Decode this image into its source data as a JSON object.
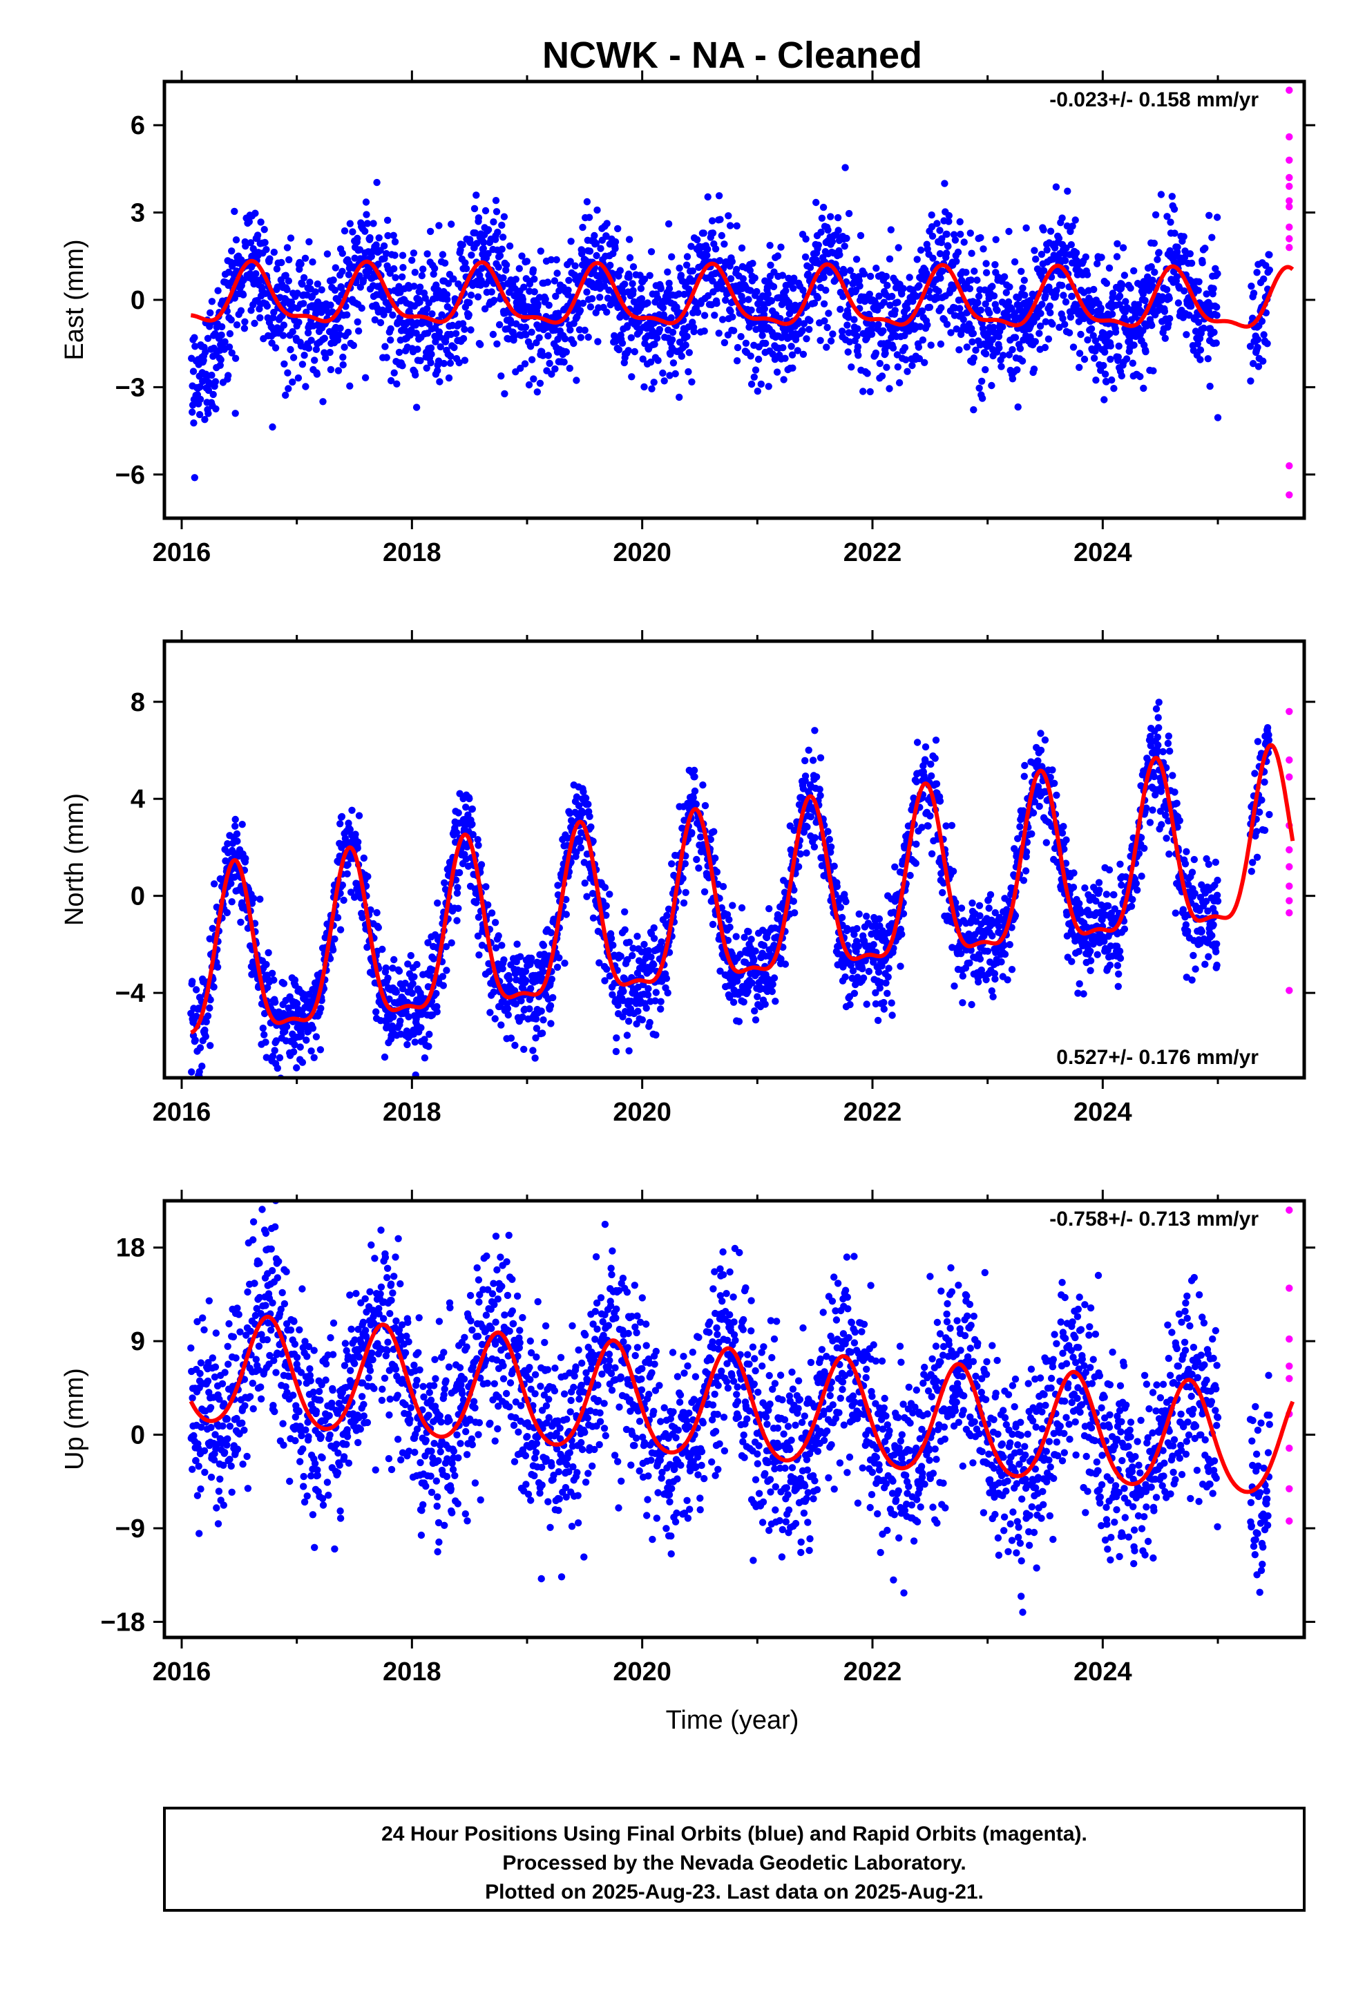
{
  "title": "NCWK  - NA - Cleaned",
  "x_axis_label": "Time (year)",
  "footer": {
    "line1": "24 Hour Positions Using Final Orbits (blue) and Rapid Orbits (magenta).",
    "line2": "Processed by the Nevada Geodetic Laboratory.",
    "line3": "Plotted on 2025-Aug-23. Last data on 2025-Aug-21."
  },
  "colors": {
    "final": "#0000ff",
    "rapid": "#ff00ff",
    "model": "#ff0000"
  },
  "chart_data": [
    {
      "type": "scatter",
      "panel": "east",
      "ylabel": "East (mm)",
      "rate_text": "-0.023+/- 0.158 mm/yr",
      "rate_position": "top-right",
      "xlim": [
        2015.85,
        2025.75
      ],
      "ylim": [
        -7.5,
        7.5
      ],
      "xticks": [
        "2016",
        "2018",
        "2020",
        "2022",
        "2024"
      ],
      "yticks": [
        "6",
        "3",
        "0",
        "−3",
        "−6"
      ],
      "model": {
        "mean": -0.05,
        "trend": -0.023,
        "annual_amp": 0.95,
        "annual_phase": 2016.62,
        "semi_amp": 0.35,
        "semi_phase": 2016.6
      },
      "scatter_sigma": 1.1,
      "start_offset": -2.4,
      "final_range": [
        2016.08,
        2025.45
      ],
      "rapid_values": [
        7.2,
        5.6,
        4.8,
        4.2,
        3.9,
        3.4,
        3.2,
        2.5,
        2.1,
        1.8,
        -5.7,
        -6.7
      ]
    },
    {
      "type": "scatter",
      "panel": "north",
      "ylabel": "North (mm)",
      "rate_text": "0.527+/- 0.176 mm/yr",
      "rate_position": "bottom-right",
      "xlim": [
        2015.85,
        2025.75
      ],
      "ylim": [
        -7.5,
        10.5
      ],
      "xticks": [
        "2016",
        "2018",
        "2020",
        "2022",
        "2024"
      ],
      "yticks": [
        "8",
        "4",
        "0",
        "−4"
      ],
      "model": {
        "mean": -0.9,
        "trend": 0.527,
        "annual_amp": 3.4,
        "annual_phase": 2016.46,
        "semi_amp": 1.1,
        "semi_phase": 2016.46
      },
      "scatter_sigma": 1.0,
      "start_offset": 0,
      "final_range": [
        2016.08,
        2025.45
      ],
      "rapid_values": [
        7.6,
        5.6,
        4.9,
        2.9,
        1.9,
        1.2,
        0.4,
        -0.2,
        -0.7,
        -3.9
      ]
    },
    {
      "type": "scatter",
      "panel": "up",
      "ylabel": "Up (mm)",
      "rate_text": "-0.758+/- 0.713 mm/yr",
      "rate_position": "top-right",
      "xlim": [
        2015.85,
        2025.75
      ],
      "ylim": [
        -19.5,
        22.5
      ],
      "xticks": [
        "2016",
        "2018",
        "2020",
        "2022",
        "2024"
      ],
      "yticks": [
        "18",
        "9",
        "0",
        "−9",
        "−18"
      ],
      "model": {
        "mean": 2.7,
        "trend": -0.758,
        "annual_amp": 5.2,
        "annual_phase": 2016.75,
        "semi_amp": 0.6,
        "semi_phase": 2016.75
      },
      "scatter_sigma": 4.6,
      "start_offset": 0,
      "final_range": [
        2016.08,
        2025.45
      ],
      "rapid_values": [
        21.6,
        14.1,
        9.2,
        6.6,
        5.4,
        2.0,
        -1.3,
        -5.2,
        -8.3
      ]
    }
  ]
}
